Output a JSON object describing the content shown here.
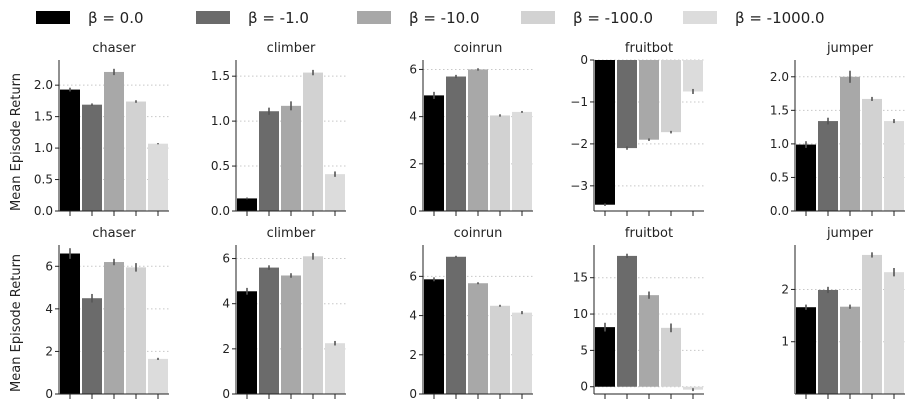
{
  "legend": {
    "position": "top",
    "entries": [
      {
        "label": "β = 0.0",
        "color": "#000000"
      },
      {
        "label": "β = -1.0",
        "color": "#6b6b6b"
      },
      {
        "label": "β = -10.0",
        "color": "#a8a8a8"
      },
      {
        "label": "β = -100.0",
        "color": "#d2d2d2"
      },
      {
        "label": "β = -1000.0",
        "color": "#dcdcdc"
      }
    ]
  },
  "row_labels": [
    "Mean Episode Return",
    "Mean Episode Return"
  ],
  "chart_data": [
    {
      "type": "bar",
      "row": 0,
      "col": 0,
      "title": "chaser",
      "series": [
        "β = 0.0",
        "β = -1.0",
        "β = -10.0",
        "β = -100.0",
        "β = -1000.0"
      ],
      "values": [
        1.93,
        1.69,
        2.21,
        1.74,
        1.07
      ],
      "errors": [
        0.03,
        0.02,
        0.05,
        0.02,
        0.01
      ],
      "ylim": [
        0,
        2.4
      ],
      "yticks": [
        "0.0",
        "0.5",
        "1.0",
        "1.5",
        "2.0"
      ],
      "ytick_values": [
        0,
        0.5,
        1.0,
        1.5,
        2.0
      ],
      "grid": true
    },
    {
      "type": "bar",
      "row": 0,
      "col": 1,
      "title": "climber",
      "series": [
        "β = 0.0",
        "β = -1.0",
        "β = -10.0",
        "β = -100.0",
        "β = -1000.0"
      ],
      "values": [
        0.14,
        1.11,
        1.17,
        1.54,
        0.41
      ],
      "errors": [
        0.01,
        0.04,
        0.05,
        0.03,
        0.03
      ],
      "ylim": [
        0,
        1.68
      ],
      "yticks": [
        "0.0",
        "0.5",
        "1.0",
        "1.5"
      ],
      "ytick_values": [
        0,
        0.5,
        1.0,
        1.5
      ],
      "grid": true
    },
    {
      "type": "bar",
      "row": 0,
      "col": 2,
      "title": "coinrun",
      "series": [
        "β = 0.0",
        "β = -1.0",
        "β = -10.0",
        "β = -100.0",
        "β = -1000.0"
      ],
      "values": [
        4.9,
        5.7,
        6.0,
        4.05,
        4.2
      ],
      "errors": [
        0.15,
        0.07,
        0.05,
        0.05,
        0.04
      ],
      "ylim": [
        0,
        6.4
      ],
      "yticks": [
        "0",
        "2",
        "4",
        "6"
      ],
      "ytick_values": [
        0,
        2,
        4,
        6
      ],
      "grid": true
    },
    {
      "type": "bar",
      "row": 0,
      "col": 3,
      "title": "fruitbot",
      "series": [
        "β = 0.0",
        "β = -1.0",
        "β = -10.0",
        "β = -100.0",
        "β = -1000.0"
      ],
      "values": [
        -3.45,
        -2.1,
        -1.9,
        -1.72,
        -0.75
      ],
      "errors": [
        0.03,
        0.04,
        0.03,
        0.03,
        0.06
      ],
      "ylim": [
        -3.6,
        0
      ],
      "yticks": [
        "−3",
        "−2",
        "−1",
        "0"
      ],
      "ytick_values": [
        -3,
        -2,
        -1,
        0
      ],
      "grid": true
    },
    {
      "type": "bar",
      "row": 0,
      "col": 4,
      "title": "jumper",
      "series": [
        "β = 0.0",
        "β = -1.0",
        "β = -10.0",
        "β = -100.0",
        "β = -1000.0"
      ],
      "values": [
        0.99,
        1.34,
        2.0,
        1.67,
        1.34
      ],
      "errors": [
        0.05,
        0.05,
        0.09,
        0.03,
        0.03
      ],
      "ylim": [
        0,
        2.25
      ],
      "yticks": [
        "0.0",
        "0.5",
        "1.0",
        "1.5",
        "2.0"
      ],
      "ytick_values": [
        0,
        0.5,
        1.0,
        1.5,
        2.0
      ],
      "grid": true
    },
    {
      "type": "bar",
      "row": 1,
      "col": 0,
      "title": "chaser",
      "series": [
        "β = 0.0",
        "β = -1.0",
        "β = -10.0",
        "β = -100.0",
        "β = -1000.0"
      ],
      "values": [
        6.6,
        4.5,
        6.2,
        5.95,
        1.65
      ],
      "errors": [
        0.25,
        0.2,
        0.15,
        0.2,
        0.05
      ],
      "ylim": [
        0,
        7.0
      ],
      "yticks": [
        "0",
        "2",
        "4",
        "6"
      ],
      "ytick_values": [
        0,
        2,
        4,
        6
      ],
      "grid": true
    },
    {
      "type": "bar",
      "row": 1,
      "col": 1,
      "title": "climber",
      "series": [
        "β = 0.0",
        "β = -1.0",
        "β = -10.0",
        "β = -100.0",
        "β = -1000.0"
      ],
      "values": [
        4.55,
        5.6,
        5.25,
        6.1,
        2.25
      ],
      "errors": [
        0.15,
        0.1,
        0.1,
        0.15,
        0.1
      ],
      "ylim": [
        0,
        6.6
      ],
      "yticks": [
        "0",
        "2",
        "4",
        "6"
      ],
      "ytick_values": [
        0,
        2,
        4,
        6
      ],
      "grid": true
    },
    {
      "type": "bar",
      "row": 1,
      "col": 2,
      "title": "coinrun",
      "series": [
        "β = 0.0",
        "β = -1.0",
        "β = -10.0",
        "β = -100.0",
        "β = -1000.0"
      ],
      "values": [
        5.85,
        7.0,
        5.65,
        4.5,
        4.15
      ],
      "errors": [
        0.1,
        0.05,
        0.05,
        0.05,
        0.08
      ],
      "ylim": [
        0,
        7.6
      ],
      "yticks": [
        "0",
        "2",
        "4",
        "6"
      ],
      "ytick_values": [
        0,
        2,
        4,
        6
      ],
      "grid": true
    },
    {
      "type": "bar",
      "row": 1,
      "col": 3,
      "title": "fruitbot",
      "series": [
        "β = 0.0",
        "β = -1.0",
        "β = -10.0",
        "β = -100.0",
        "β = -1000.0"
      ],
      "values": [
        8.2,
        18.0,
        12.6,
        8.1,
        -0.4
      ],
      "errors": [
        0.6,
        0.3,
        0.5,
        0.6,
        0.2
      ],
      "ylim": [
        -1,
        19.5
      ],
      "yticks": [
        "0",
        "5",
        "10",
        "15"
      ],
      "ytick_values": [
        0,
        5,
        10,
        15
      ],
      "grid": true
    },
    {
      "type": "bar",
      "row": 1,
      "col": 4,
      "title": "jumper",
      "series": [
        "β = 0.0",
        "β = -1.0",
        "β = -10.0",
        "β = -100.0",
        "β = -1000.0"
      ],
      "values": [
        1.66,
        1.99,
        1.67,
        2.66,
        2.33
      ],
      "errors": [
        0.05,
        0.06,
        0.04,
        0.05,
        0.08
      ],
      "ylim": [
        0,
        2.85
      ],
      "yticks": [
        "1",
        "2"
      ],
      "ytick_values": [
        1,
        2
      ],
      "grid": true
    }
  ]
}
